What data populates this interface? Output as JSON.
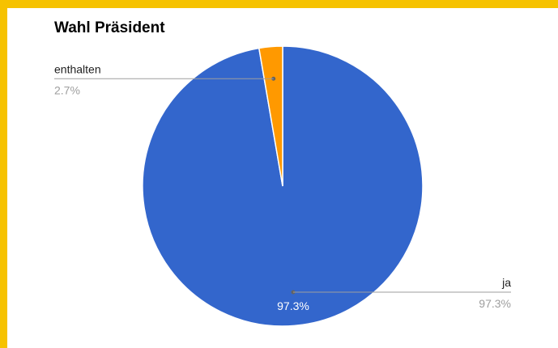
{
  "chart_data": {
    "type": "pie",
    "title": "Wahl Präsident",
    "slices": [
      {
        "label": "ja",
        "value": 97.3,
        "value_label": "97.3%",
        "color": "#3366cc"
      },
      {
        "label": "enthalten",
        "value": 2.7,
        "value_label": "2.7%",
        "color": "#ff9900"
      }
    ],
    "inside_label": "97.3%",
    "legend": "leader-lines"
  },
  "frame": {
    "accent_color": "#f6c200"
  }
}
